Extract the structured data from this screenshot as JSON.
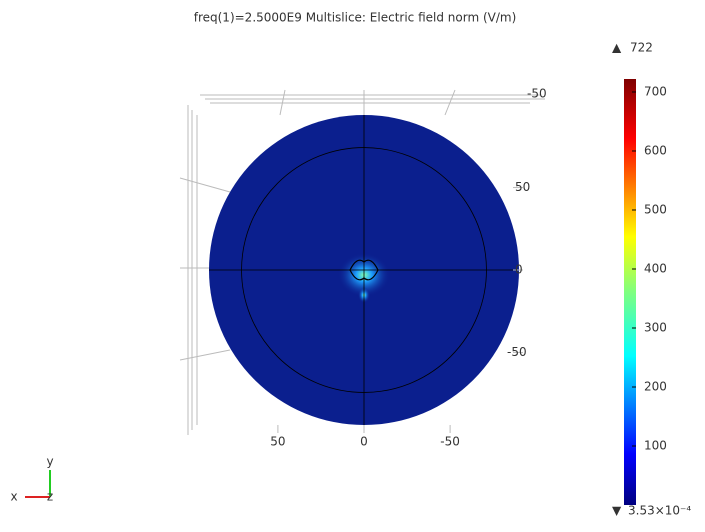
{
  "chart_data": {
    "type": "multislice",
    "title": "freq(1)=2.5000E9   Multislice: Electric field norm (V/m)",
    "xlim": [
      90,
      -90
    ],
    "ylim": [
      94,
      -94
    ],
    "xticks": [
      50,
      0,
      -50
    ],
    "yticks": [
      50,
      0,
      -50
    ],
    "zticks": [
      -50
    ],
    "field_color": "#0b1f8e",
    "axis_labels": {
      "x": "x",
      "y": "y",
      "z": "z"
    },
    "colorbar": {
      "max": 722,
      "min": {
        "value": 0.000353,
        "label": "3.53×10⁻⁴"
      },
      "ticks": [
        100,
        200,
        300,
        400,
        500,
        600,
        700
      ]
    }
  }
}
